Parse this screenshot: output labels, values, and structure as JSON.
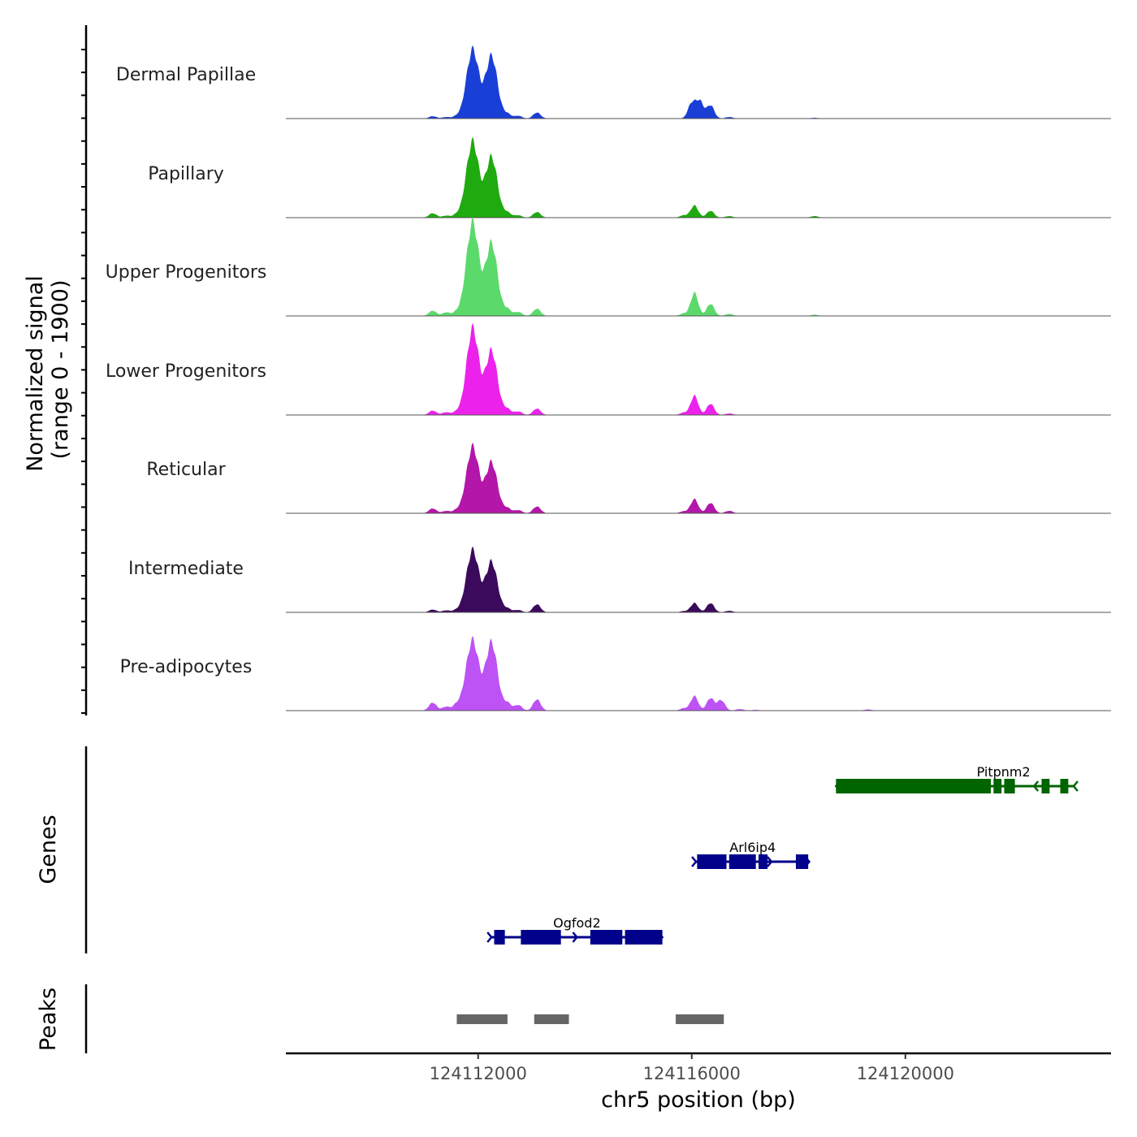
{
  "chart_data": {
    "type": "area",
    "title": "",
    "xlabel": "chr5 position (bp)",
    "ylabel_line1": "Normalized signal",
    "ylabel_line2": "(range 0 - 1900)",
    "y_range": [
      0,
      1900
    ],
    "x_range": [
      124108400,
      124123850
    ],
    "x_ticks": [
      124112000,
      124116000,
      124120000
    ],
    "x_tick_labels": [
      "124112000",
      "124116000",
      "124120000"
    ],
    "genes_label": "Genes",
    "peaks_label": "Peaks",
    "series": [
      {
        "name": "Dermal Papillae",
        "color": "#1a3fd6",
        "peaks": [
          [
            124111150,
            60
          ],
          [
            124111400,
            40
          ],
          [
            124111600,
            60
          ],
          [
            124111750,
            90
          ],
          [
            124111900,
            1700
          ],
          [
            124112250,
            1550
          ],
          [
            124112550,
            110
          ],
          [
            124112750,
            70
          ],
          [
            124113100,
            150
          ],
          [
            124116000,
            380
          ],
          [
            124116150,
            420
          ],
          [
            124116350,
            330
          ],
          [
            124116700,
            40
          ],
          [
            124118300,
            20
          ]
        ]
      },
      {
        "name": "Papillary",
        "color": "#1faa0f",
        "peaks": [
          [
            124111150,
            110
          ],
          [
            124111400,
            50
          ],
          [
            124111600,
            80
          ],
          [
            124111750,
            140
          ],
          [
            124111900,
            1870
          ],
          [
            124112250,
            1500
          ],
          [
            124112550,
            120
          ],
          [
            124112750,
            60
          ],
          [
            124113100,
            140
          ],
          [
            124115850,
            60
          ],
          [
            124116050,
            300
          ],
          [
            124116350,
            170
          ],
          [
            124116700,
            40
          ],
          [
            124118300,
            40
          ]
        ]
      },
      {
        "name": "Upper Progenitors",
        "color": "#5bd96b",
        "peaks": [
          [
            124111150,
            130
          ],
          [
            124111400,
            90
          ],
          [
            124111600,
            100
          ],
          [
            124111750,
            160
          ],
          [
            124111900,
            2300
          ],
          [
            124112250,
            1800
          ],
          [
            124112550,
            160
          ],
          [
            124112750,
            100
          ],
          [
            124113100,
            180
          ],
          [
            124115850,
            60
          ],
          [
            124116050,
            570
          ],
          [
            124116350,
            300
          ],
          [
            124116700,
            50
          ],
          [
            124118300,
            30
          ]
        ]
      },
      {
        "name": "Lower Progenitors",
        "color": "#ec22ec",
        "peaks": [
          [
            124111150,
            110
          ],
          [
            124111400,
            70
          ],
          [
            124111600,
            80
          ],
          [
            124111750,
            90
          ],
          [
            124111900,
            2140
          ],
          [
            124112250,
            1590
          ],
          [
            124112550,
            140
          ],
          [
            124112750,
            90
          ],
          [
            124113100,
            160
          ],
          [
            124115850,
            60
          ],
          [
            124116050,
            480
          ],
          [
            124116350,
            280
          ],
          [
            124116700,
            40
          ]
        ]
      },
      {
        "name": "Reticular",
        "color": "#b316a8",
        "peaks": [
          [
            124111150,
            120
          ],
          [
            124111400,
            60
          ],
          [
            124111600,
            80
          ],
          [
            124111750,
            100
          ],
          [
            124111900,
            1640
          ],
          [
            124112250,
            1260
          ],
          [
            124112550,
            120
          ],
          [
            124112750,
            80
          ],
          [
            124113100,
            170
          ],
          [
            124115850,
            50
          ],
          [
            124116050,
            350
          ],
          [
            124116350,
            260
          ],
          [
            124116700,
            60
          ]
        ]
      },
      {
        "name": "Intermediate",
        "color": "#3b0a5c",
        "peaks": [
          [
            124111150,
            70
          ],
          [
            124111400,
            50
          ],
          [
            124111600,
            60
          ],
          [
            124111750,
            90
          ],
          [
            124111900,
            1530
          ],
          [
            124112250,
            1250
          ],
          [
            124112550,
            90
          ],
          [
            124112750,
            60
          ],
          [
            124113100,
            200
          ],
          [
            124115850,
            30
          ],
          [
            124116050,
            230
          ],
          [
            124116350,
            230
          ],
          [
            124116700,
            40
          ]
        ]
      },
      {
        "name": "Pre-adipocytes",
        "color": "#bd52f5",
        "peaks": [
          [
            124111150,
            200
          ],
          [
            124111400,
            100
          ],
          [
            124111600,
            160
          ],
          [
            124111750,
            190
          ],
          [
            124111900,
            1720
          ],
          [
            124112250,
            1690
          ],
          [
            124112550,
            180
          ],
          [
            124112750,
            140
          ],
          [
            124113100,
            280
          ],
          [
            124115850,
            60
          ],
          [
            124116050,
            360
          ],
          [
            124116350,
            310
          ],
          [
            124116550,
            260
          ],
          [
            124116900,
            40
          ],
          [
            124117200,
            20
          ],
          [
            124119300,
            30
          ]
        ]
      }
    ],
    "genes": [
      {
        "name": "Pitpnm2",
        "strand": "-",
        "color": "#006400",
        "row": 0,
        "start": 124118700,
        "end": 124123150,
        "exons": [
          [
            124118700,
            124121600
          ],
          [
            124121650,
            124121800
          ],
          [
            124121850,
            124122050
          ],
          [
            124122550,
            124122700
          ],
          [
            124122900,
            124123050
          ]
        ]
      },
      {
        "name": "Arl6ip4",
        "strand": "+",
        "color": "#00008b",
        "row": 1,
        "start": 124116080,
        "end": 124118200,
        "exons": [
          [
            124116100,
            124116650
          ],
          [
            124116700,
            124117200
          ],
          [
            124117250,
            124117420
          ],
          [
            124117950,
            124118000
          ],
          [
            124118000,
            124118180
          ]
        ]
      },
      {
        "name": "Ogfod2",
        "strand": "+",
        "color": "#00008b",
        "row": 2,
        "start": 124112250,
        "end": 124115450,
        "exons": [
          [
            124112300,
            124112500
          ],
          [
            124112800,
            124113550
          ],
          [
            124114100,
            124114700
          ],
          [
            124114750,
            124115450
          ]
        ]
      }
    ],
    "peak_regions": [
      [
        124111600,
        124112550
      ],
      [
        124113050,
        124113700
      ],
      [
        124115700,
        124116600
      ]
    ],
    "peak_color": "#666666"
  }
}
